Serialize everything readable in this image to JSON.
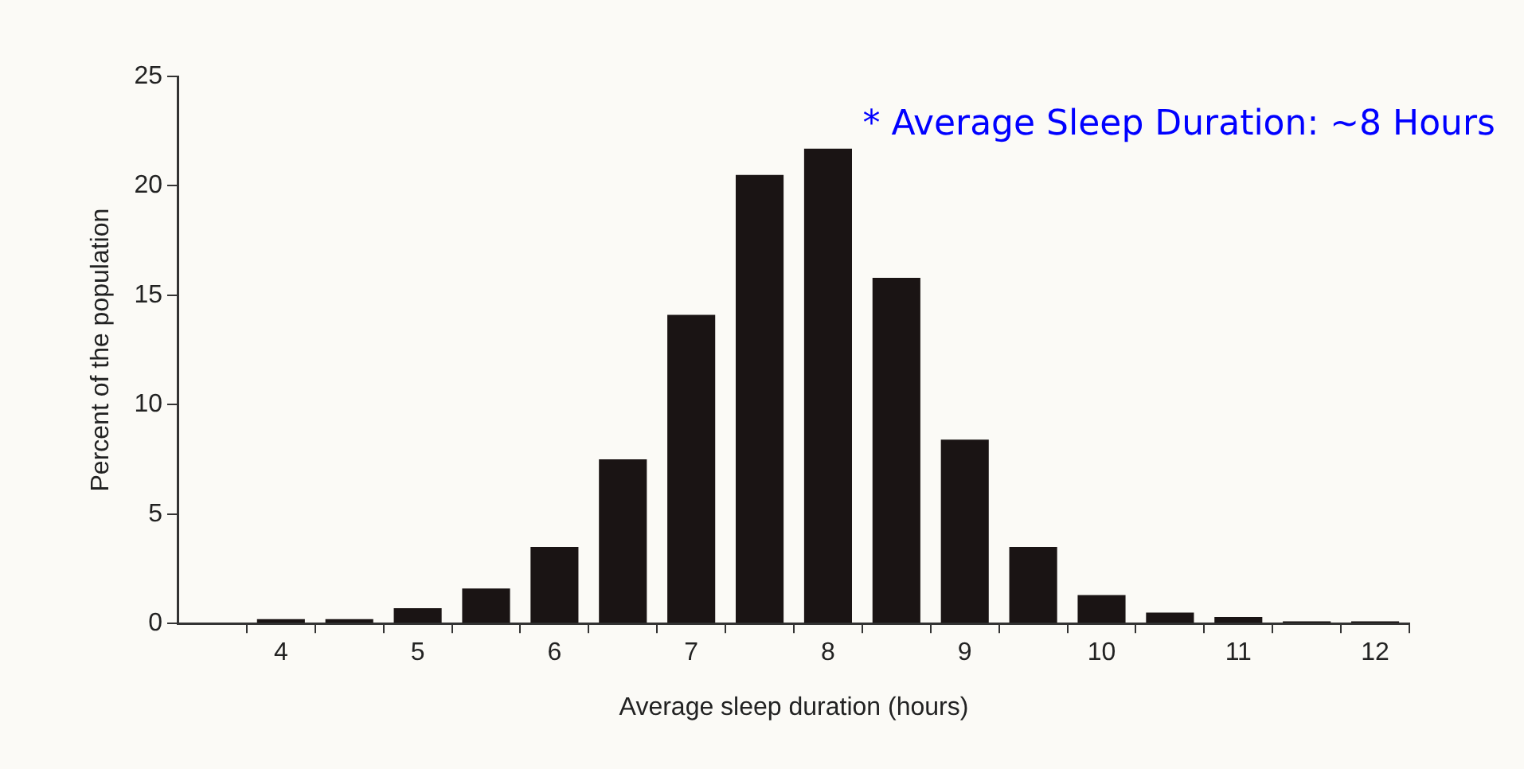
{
  "chart_data": {
    "type": "histogram",
    "xlabel": "Average sleep duration (hours)",
    "ylabel": "Percent of the population",
    "bins": [
      3.75,
      4.25,
      4.75,
      5.25,
      5.75,
      6.25,
      6.75,
      7.25,
      7.75,
      8.25,
      8.75,
      9.25,
      9.75,
      10.25,
      10.75,
      11.25,
      11.75,
      12.25
    ],
    "values": [
      0.2,
      0.2,
      0.7,
      1.6,
      3.5,
      7.5,
      14.1,
      20.5,
      21.7,
      15.8,
      8.4,
      3.5,
      1.3,
      0.5,
      0.3,
      0.1,
      0.1
    ],
    "color": "#1a1414",
    "xlim": [
      3.25,
      12.25
    ],
    "xticks": [
      {
        "value": 3.75,
        "label": null
      },
      4,
      {
        "value": 4.25,
        "label": null
      },
      {
        "value": 4.75,
        "label": null
      },
      5,
      {
        "value": 5.25,
        "label": null
      },
      {
        "value": 5.75,
        "label": null
      },
      6,
      {
        "value": 6.25,
        "label": null
      },
      {
        "value": 6.75,
        "label": null
      },
      7,
      {
        "value": 7.25,
        "label": null
      },
      {
        "value": 7.75,
        "label": null
      },
      8,
      {
        "value": 8.25,
        "label": null
      },
      {
        "value": 8.75,
        "label": null
      },
      9,
      {
        "value": 9.25,
        "label": null
      },
      {
        "value": 9.75,
        "label": null
      },
      10,
      {
        "value": 10.25,
        "label": null
      },
      {
        "value": 10.75,
        "label": null
      },
      11,
      {
        "value": 11.25,
        "label": null
      },
      {
        "value": 11.75,
        "label": null
      },
      12,
      {
        "value": 12.25,
        "label": null
      }
    ],
    "ylim": [
      0,
      25
    ],
    "yticks": [
      0,
      5,
      10,
      15,
      20,
      25
    ],
    "grid": false,
    "legend": false,
    "annotations": [
      "* Average Sleep Duration: ~8 Hours"
    ]
  }
}
